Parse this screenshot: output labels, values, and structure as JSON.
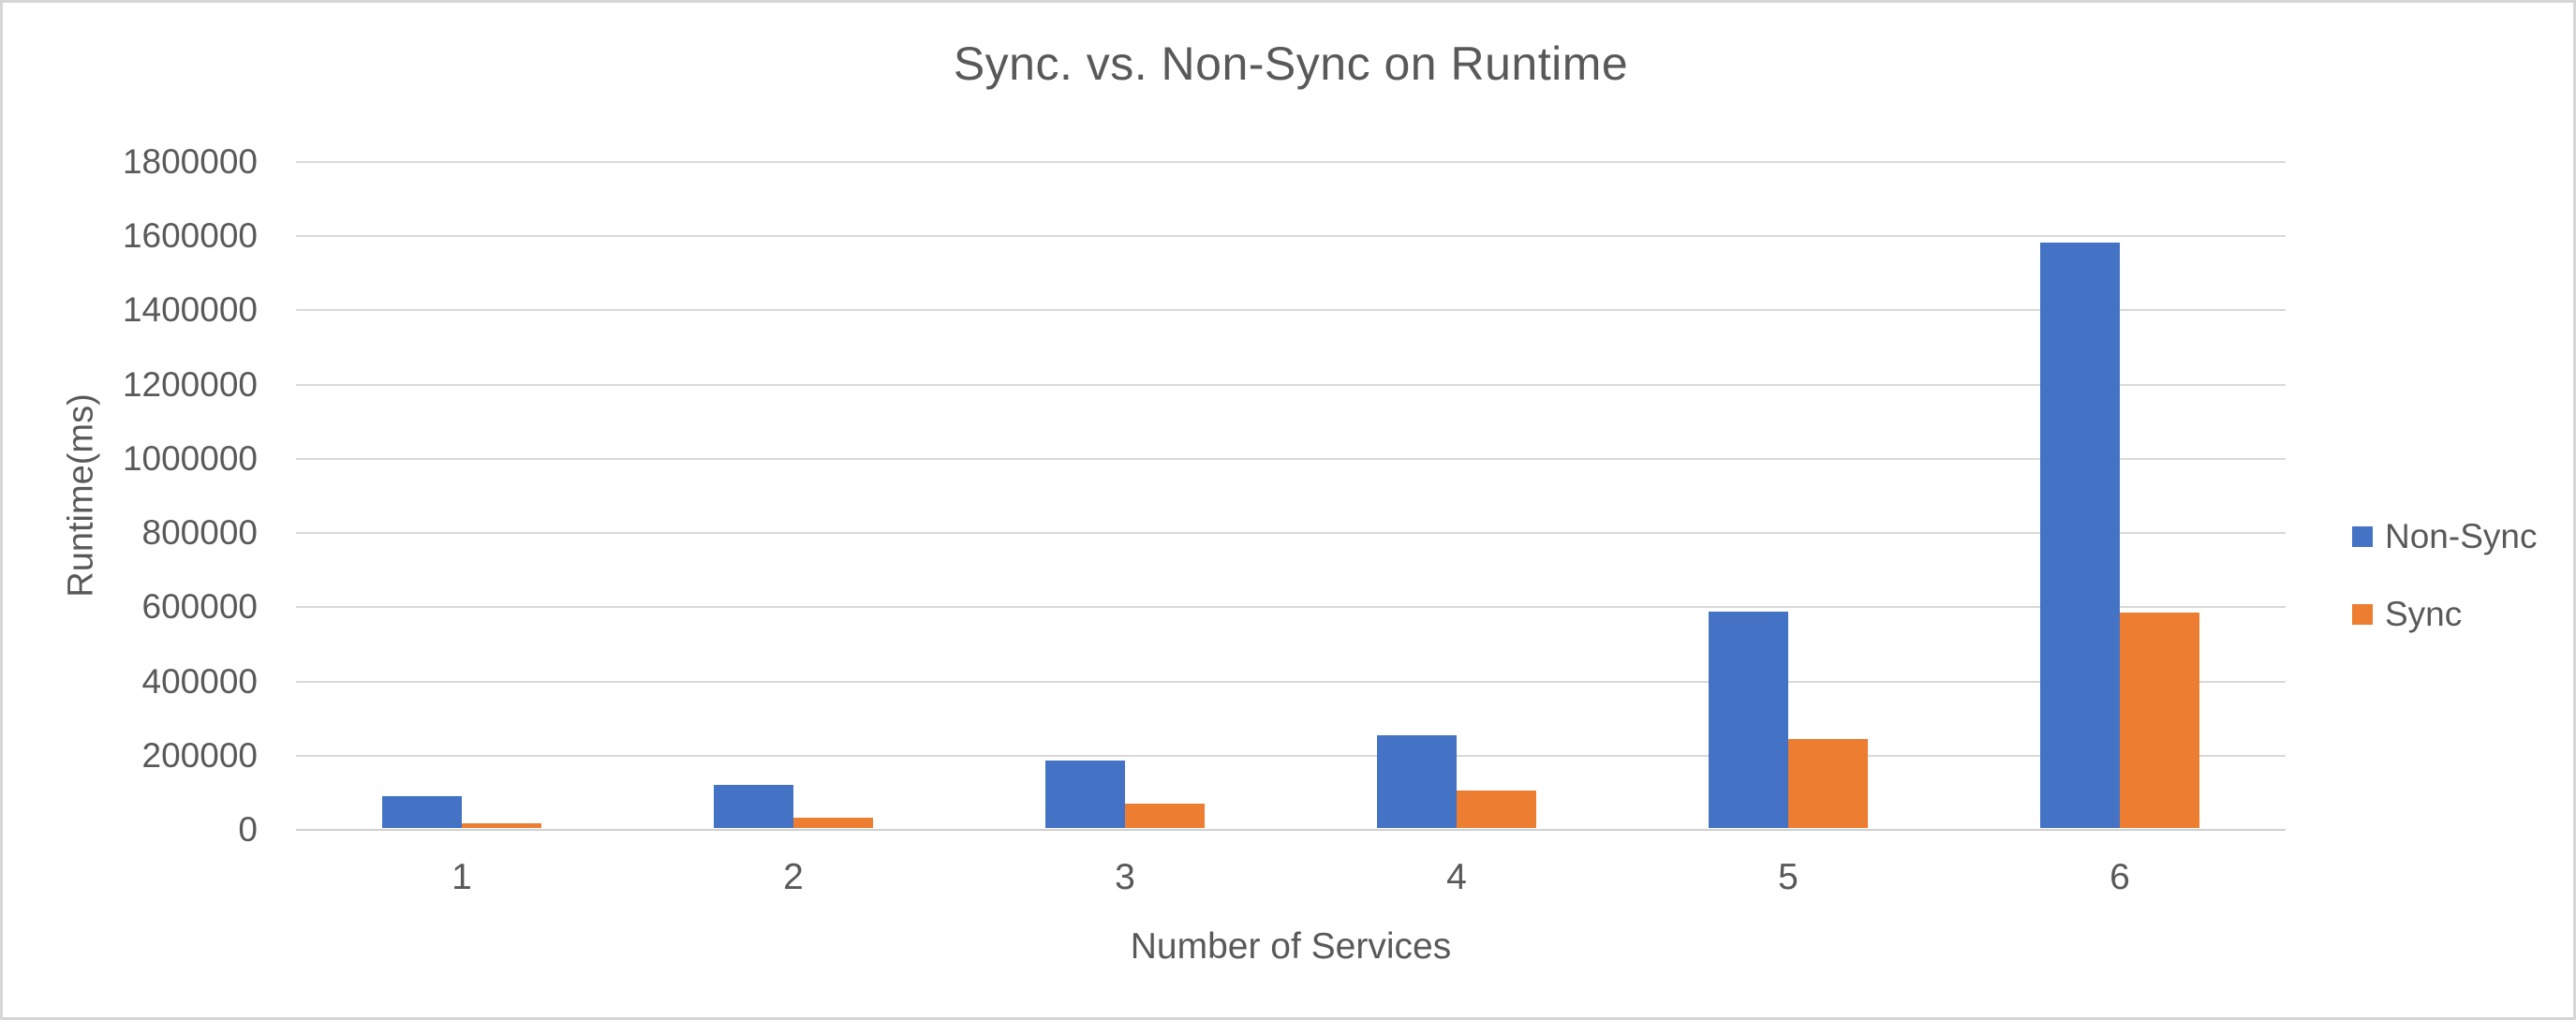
{
  "chart_data": {
    "type": "bar",
    "title": "Sync. vs. Non-Sync on Runtime",
    "xlabel": "Number of Services",
    "ylabel": "Runtime(ms)",
    "categories": [
      "1",
      "2",
      "3",
      "4",
      "5",
      "6"
    ],
    "series": [
      {
        "name": "Non-Sync",
        "color": "#4472C4",
        "values": [
          85000,
          115000,
          182000,
          250000,
          582000,
          1578000
        ]
      },
      {
        "name": "Sync",
        "color": "#ED7D31",
        "values": [
          13000,
          29000,
          65000,
          100000,
          241000,
          580000
        ]
      }
    ],
    "ylim": [
      0,
      1800000
    ],
    "ytick_step": 200000,
    "ytick_labels": [
      "0",
      "200000",
      "400000",
      "600000",
      "800000",
      "1000000",
      "1200000",
      "1400000",
      "1600000",
      "1800000"
    ],
    "grid": true,
    "legend_position": "right",
    "text_color": "#595959",
    "gridline_color": "#D9D9D9",
    "frame_border_color": "#D6D6D6",
    "background_color": "#FFFFFF"
  }
}
